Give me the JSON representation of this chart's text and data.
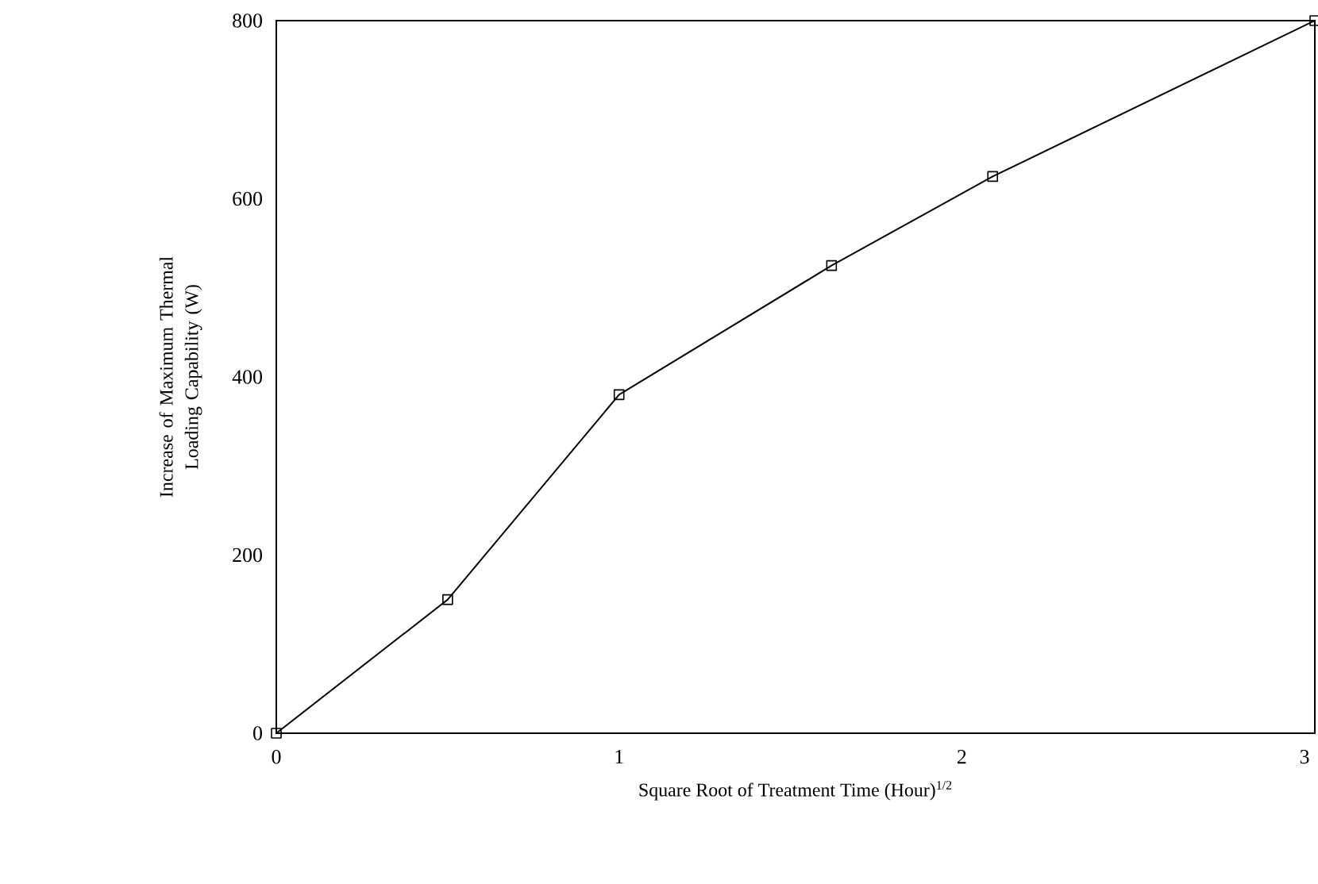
{
  "chart_data": {
    "type": "line",
    "xlabel": "Square Root of Treatment Time (Hour)$^{1/2}$",
    "ylabel": "Increase of Maximum Thermal Loading Capability (W)",
    "x": [
      0,
      0.5,
      1.0,
      1.62,
      2.09,
      3.03
    ],
    "series": [
      {
        "color": "#000000",
        "values": [
          0,
          150,
          380,
          525,
          625,
          800
        ]
      }
    ],
    "xlim": [
      0,
      3.03
    ],
    "ylim": [
      0,
      800
    ],
    "xticks": [
      0,
      1,
      2,
      3
    ],
    "yticks": [
      0,
      200,
      400,
      600,
      800
    ],
    "marker": "square",
    "line_style": "solid"
  }
}
